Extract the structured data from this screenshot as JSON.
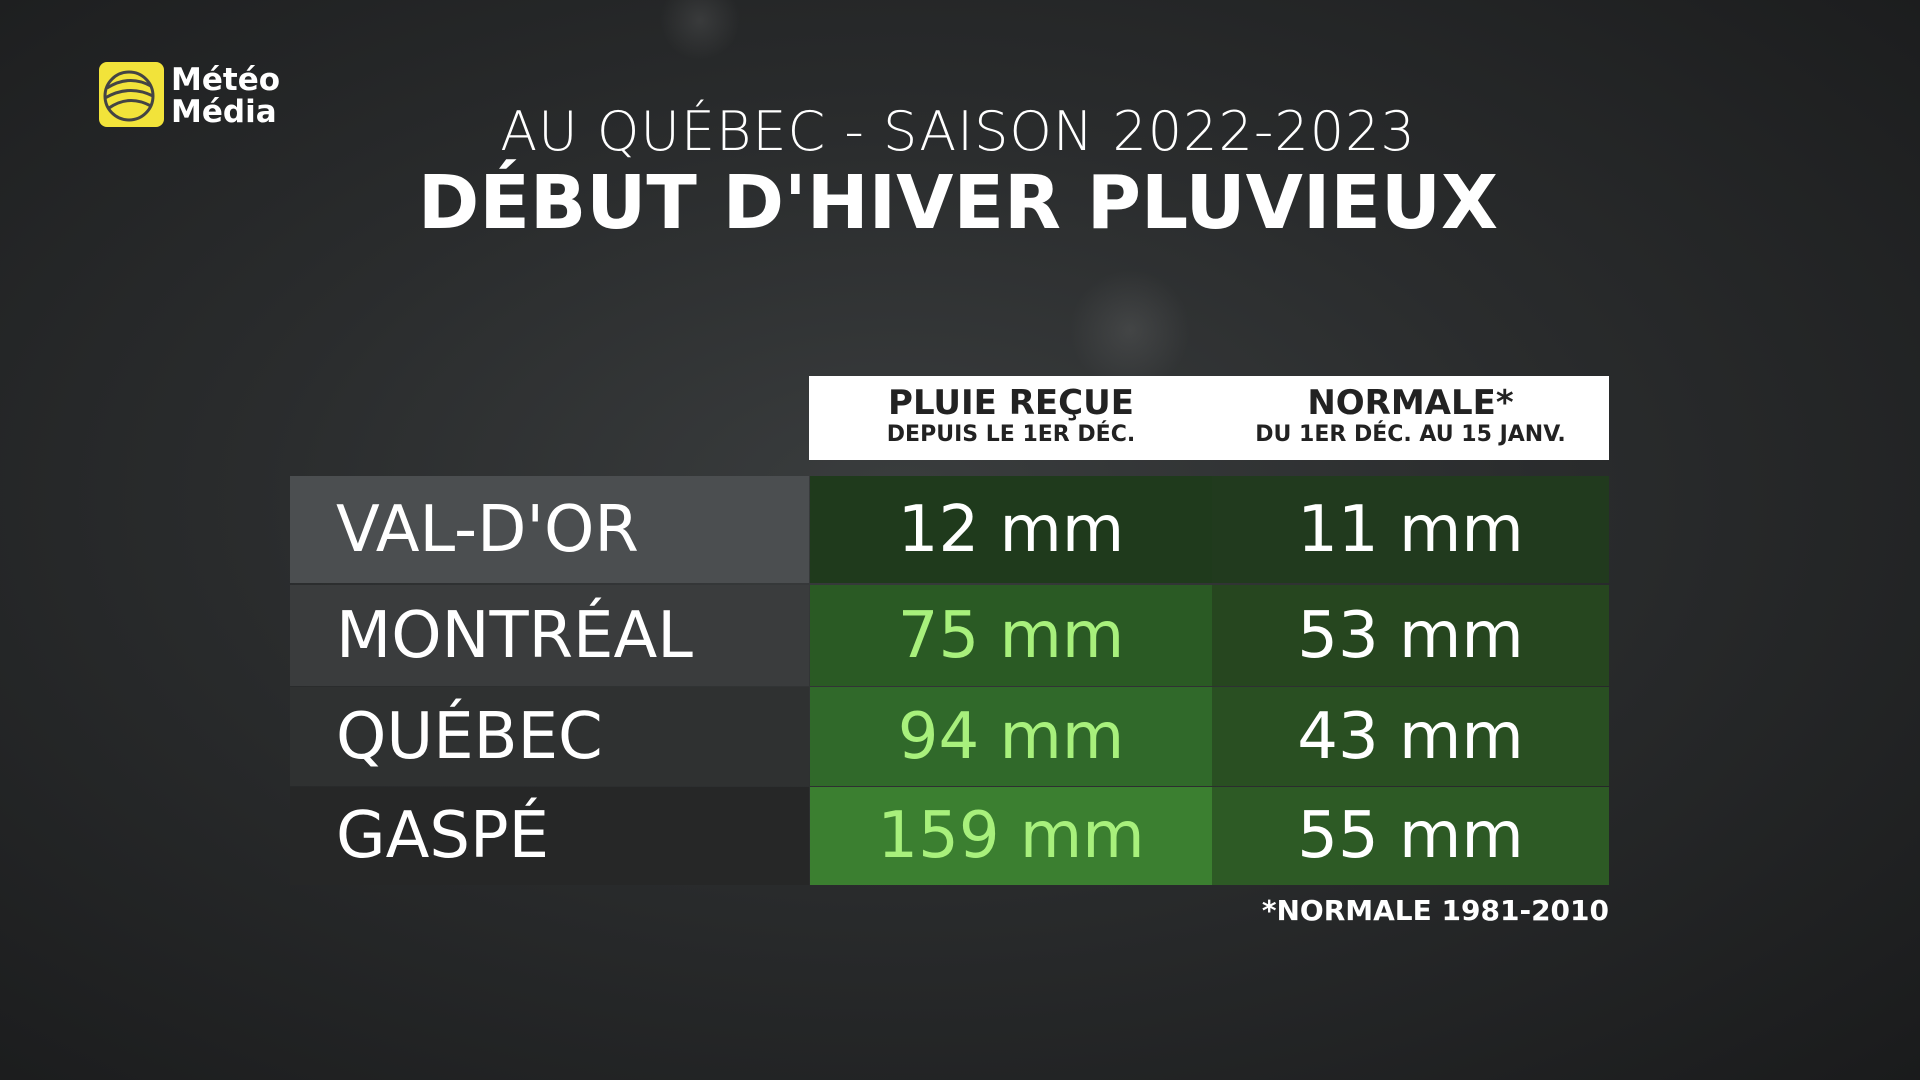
{
  "logo": {
    "line1": "Météo",
    "line2": "Média"
  },
  "header": {
    "subtitle": "AU QUÉBEC - SAISON 2022-2023",
    "title": "DÉBUT D'HIVER PLUVIEUX"
  },
  "table": {
    "columns": [
      {
        "title": "PLUIE REÇUE",
        "subtitle": "DEPUIS LE 1ER DÉC."
      },
      {
        "title": "NORMALE*",
        "subtitle": "DU 1ER DÉC. AU 15 JANV."
      }
    ],
    "rows": [
      [
        "VAL-D'OR",
        "12 mm",
        "11 mm"
      ],
      [
        "MONTRÉAL",
        "75 mm",
        "53 mm"
      ],
      [
        "QUÉBEC",
        "94 mm",
        "43 mm"
      ],
      [
        "GASPÉ",
        "159 mm",
        "55 mm"
      ]
    ]
  },
  "footnote": "*NORMALE 1981-2010"
}
